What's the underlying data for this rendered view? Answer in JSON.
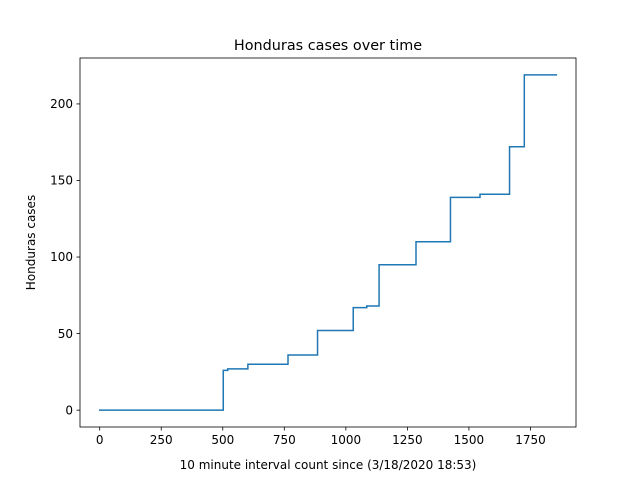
{
  "chart_data": {
    "type": "line",
    "title": "Honduras cases over time",
    "xlabel": "10 minute interval count since (3/18/2020 18:53)",
    "ylabel": "Honduras cases",
    "xlim": [
      -80,
      1935
    ],
    "ylim": [
      -11,
      230
    ],
    "xticks": [
      0,
      250,
      500,
      750,
      1000,
      1250,
      1500,
      1750
    ],
    "xtick_labels": [
      "0",
      "250",
      "500",
      "750",
      "1000",
      "1250",
      "1500",
      "1750"
    ],
    "yticks": [
      0,
      50,
      100,
      150,
      200
    ],
    "ytick_labels": [
      "0",
      "50",
      "100",
      "150",
      "200"
    ],
    "grid": false,
    "legend": false,
    "series": [
      {
        "color": "#1f77b4",
        "drawstyle": "steps-post",
        "x": [
          0,
          502,
          520,
          602,
          765,
          885,
          1030,
          1085,
          1135,
          1285,
          1425,
          1545,
          1665,
          1725,
          1855
        ],
        "y": [
          0,
          26,
          27,
          30,
          36,
          52,
          67,
          68,
          95,
          110,
          139,
          141,
          172,
          219,
          219
        ]
      }
    ]
  }
}
